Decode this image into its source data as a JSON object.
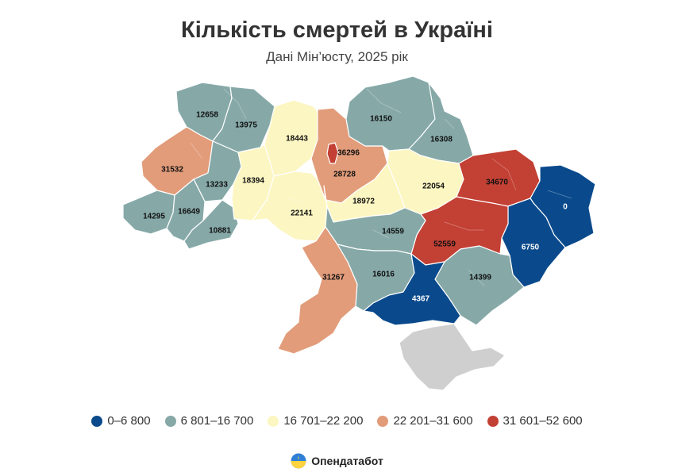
{
  "title": "Кількість смертей в Україні",
  "subtitle": "Дані Мін’юсту, 2025 рік",
  "legend": [
    {
      "label": "0–6 800",
      "color": "#0a4a8c"
    },
    {
      "label": "6 801–16 700",
      "color": "#86a9a8"
    },
    {
      "label": "16 701–22 200",
      "color": "#fcf6c2"
    },
    {
      "label": "22 201–31 600",
      "color": "#e29c7a"
    },
    {
      "label": "31 601–52 600",
      "color": "#c34034"
    }
  ],
  "no_data_color": "#cfcfcf",
  "regions": [
    {
      "id": "volyn",
      "value": "12658"
    },
    {
      "id": "rivne",
      "value": "13975"
    },
    {
      "id": "lviv",
      "value": "31532"
    },
    {
      "id": "ternopil",
      "value": "13233"
    },
    {
      "id": "zakarpattia",
      "value": "14295"
    },
    {
      "id": "ivano-frankivsk",
      "value": "16649"
    },
    {
      "id": "chernivtsi",
      "value": "10881"
    },
    {
      "id": "zhytomyr",
      "value": "18443"
    },
    {
      "id": "khmelnytskyi",
      "value": "18394"
    },
    {
      "id": "vinnytsia",
      "value": "22141"
    },
    {
      "id": "kyiv-oblast",
      "value": "28728"
    },
    {
      "id": "kyiv-city",
      "value": "36296"
    },
    {
      "id": "chernihiv",
      "value": "16150"
    },
    {
      "id": "sumy",
      "value": "16308"
    },
    {
      "id": "poltava",
      "value": "22054"
    },
    {
      "id": "cherkasy",
      "value": "18972"
    },
    {
      "id": "kharkiv",
      "value": "34670"
    },
    {
      "id": "luhansk",
      "value": "0"
    },
    {
      "id": "donetsk",
      "value": "6750"
    },
    {
      "id": "dnipropetrovsk",
      "value": "52559"
    },
    {
      "id": "kirovohrad",
      "value": "14559"
    },
    {
      "id": "odesa",
      "value": "31267"
    },
    {
      "id": "mykolaiv",
      "value": "16016"
    },
    {
      "id": "zaporizhzhia",
      "value": "14399"
    },
    {
      "id": "kherson",
      "value": "4367"
    },
    {
      "id": "crimea",
      "value": ""
    }
  ],
  "brand": {
    "name": "Опендатабот",
    "icon": "opendatabot-logo-icon"
  }
}
